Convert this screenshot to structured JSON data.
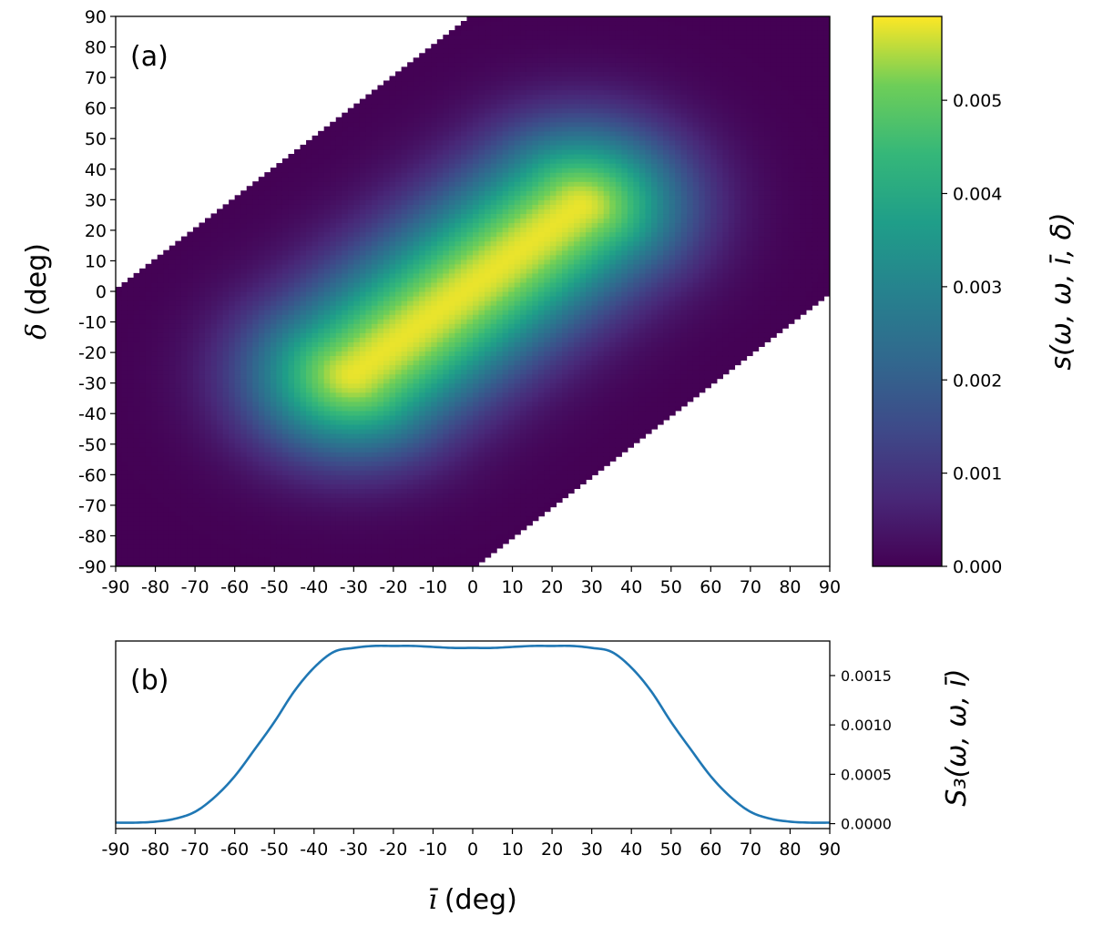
{
  "chart_data": [
    {
      "type": "heatmap",
      "panel_label": "(a)",
      "xlabel": "",
      "ylabel": {
        "symbol": "δ",
        "unit": "(deg)"
      },
      "xlim": [
        -90,
        90
      ],
      "ylim": [
        -90,
        90
      ],
      "x_ticks": [
        "-90",
        "-80",
        "-70",
        "-60",
        "-50",
        "-40",
        "-30",
        "-20",
        "-10",
        "0",
        "10",
        "20",
        "30",
        "40",
        "50",
        "60",
        "70",
        "80",
        "90"
      ],
      "y_ticks": [
        "-90",
        "-80",
        "-70",
        "-60",
        "-50",
        "-40",
        "-30",
        "-20",
        "-10",
        "0",
        "10",
        "20",
        "30",
        "40",
        "50",
        "60",
        "70",
        "80",
        "90"
      ],
      "colormap": "viridis",
      "colorbar": {
        "label": "s(ω, ω, ī, δ)",
        "range": [
          0,
          0.0059
        ],
        "ticks": [
          "0.000",
          "0.001",
          "0.002",
          "0.003",
          "0.004",
          "0.005"
        ],
        "tick_values": [
          0,
          0.001,
          0.002,
          0.003,
          0.004,
          0.005
        ]
      },
      "valid_region": "|x - y| <= 90 (blank outside)",
      "ridge": {
        "from": [
          -30,
          -27
        ],
        "to": [
          27,
          28
        ],
        "peak_value": 0.0058,
        "spread_deg": 18
      }
    },
    {
      "type": "line",
      "panel_label": "(b)",
      "xlabel": {
        "symbol": "ī",
        "unit": "(deg)"
      },
      "ylabel": "S₃(ω, ω, ī)",
      "xlim": [
        -90,
        90
      ],
      "ylim": [
        -5e-05,
        0.00185
      ],
      "x_ticks": [
        "-90",
        "-80",
        "-70",
        "-60",
        "-50",
        "-40",
        "-30",
        "-20",
        "-10",
        "0",
        "10",
        "20",
        "30",
        "40",
        "50",
        "60",
        "70",
        "80",
        "90"
      ],
      "y_ticks": [
        "0.0000",
        "0.0005",
        "0.0010",
        "0.0015"
      ],
      "y_tick_values": [
        0,
        0.0005,
        0.001,
        0.0015
      ],
      "line_color": "#1f77b4",
      "series": [
        {
          "name": "S3",
          "x": [
            -90,
            -85,
            -80,
            -75,
            -70,
            -65,
            -60,
            -55,
            -50,
            -45,
            -40,
            -35,
            -30,
            -25,
            -20,
            -15,
            -10,
            -5,
            0,
            5,
            10,
            15,
            20,
            25,
            30,
            35,
            40,
            45,
            50,
            55,
            60,
            65,
            70,
            75,
            80,
            85,
            90
          ],
          "y": [
            1e-05,
            1e-05,
            2e-05,
            5e-05,
            0.00012,
            0.00027,
            0.00048,
            0.00075,
            0.00103,
            0.00134,
            0.00158,
            0.00174,
            0.00178,
            0.0018,
            0.0018,
            0.0018,
            0.00179,
            0.00178,
            0.00178,
            0.00178,
            0.00179,
            0.0018,
            0.0018,
            0.0018,
            0.00178,
            0.00174,
            0.00158,
            0.00134,
            0.00103,
            0.00075,
            0.00048,
            0.00027,
            0.00012,
            5e-05,
            2e-05,
            1e-05,
            1e-05
          ]
        }
      ]
    }
  ]
}
